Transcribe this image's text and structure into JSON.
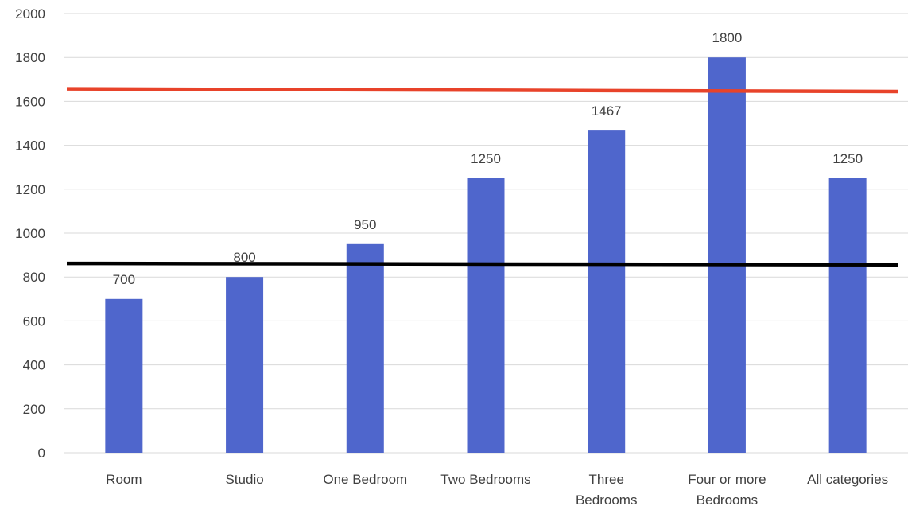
{
  "chart_data": {
    "type": "bar",
    "categories": [
      [
        "Room"
      ],
      [
        "Studio"
      ],
      [
        "One Bedroom"
      ],
      [
        "Two Bedrooms"
      ],
      [
        "Three",
        "Bedrooms"
      ],
      [
        "Four or more",
        "Bedrooms"
      ],
      [
        "All categories"
      ]
    ],
    "values": [
      700,
      800,
      950,
      1250,
      1467,
      1800,
      1250
    ],
    "ylim": [
      0,
      2000
    ],
    "yticks": [
      0,
      200,
      400,
      600,
      800,
      1000,
      1200,
      1400,
      1600,
      1800,
      2000
    ],
    "grid": true,
    "bar_color": "#4f66cc",
    "reference_lines": [
      {
        "color": "#e8432a",
        "y_start": 1657,
        "y_end": 1645
      },
      {
        "color": "#000000",
        "y_start": 862,
        "y_end": 856
      }
    ]
  }
}
